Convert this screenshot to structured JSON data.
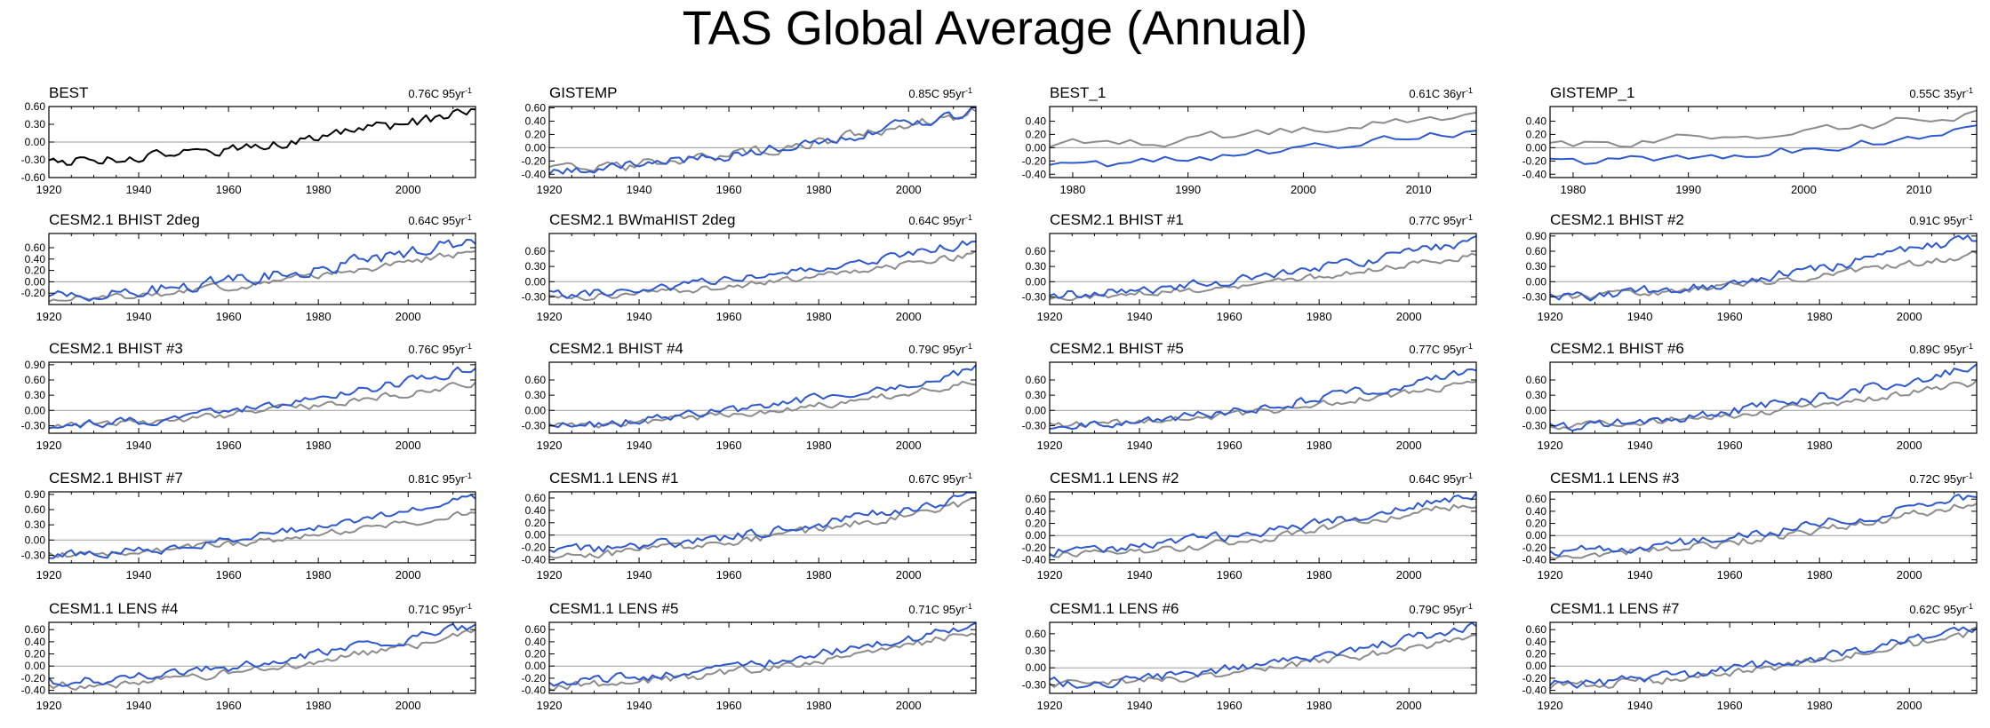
{
  "figure": {
    "title": "TAS Global Average (Annual)",
    "colors": {
      "observed": "#8c8c8c",
      "model": "#2d58d0",
      "obs_only": "#000000",
      "zero_line": "#9a9a9a"
    }
  },
  "chart_data": [
    {
      "type": "line",
      "title": "BEST",
      "trend": "0.76C 95yr",
      "trend_exp": "-1",
      "xlim": [
        1920,
        2015
      ],
      "xticks": [
        1920,
        1940,
        1960,
        1980,
        2000
      ],
      "ylim": [
        -0.6,
        0.6
      ],
      "yticks": [
        "-0.60",
        "-0.30",
        "0.00",
        "0.30",
        "0.60"
      ],
      "series": [
        {
          "name": "BEST",
          "role": "obs_only",
          "seed": 1,
          "trend": [
            -0.32,
            0.52
          ],
          "noise": 0.08
        }
      ]
    },
    {
      "type": "line",
      "title": "GISTEMP",
      "trend": "0.85C 95yr",
      "trend_exp": "-1",
      "xlim": [
        1920,
        2015
      ],
      "xticks": [
        1920,
        1940,
        1960,
        1980,
        2000
      ],
      "ylim": [
        -0.45,
        0.62
      ],
      "yticks": [
        "-0.40",
        "-0.20",
        "0.00",
        "0.20",
        "0.40",
        "0.60"
      ],
      "series": [
        {
          "name": "observed",
          "role": "observed",
          "seed": 2,
          "trend": [
            -0.33,
            0.55
          ],
          "noise": 0.07
        },
        {
          "name": "model",
          "role": "model",
          "seed": 3,
          "trend": [
            -0.33,
            0.57
          ],
          "noise": 0.07
        }
      ]
    },
    {
      "type": "line",
      "title": "BEST_1",
      "trend": "0.61C 36yr",
      "trend_exp": "-1",
      "xlim": [
        1978,
        2015
      ],
      "xticks": [
        1980,
        1990,
        2000,
        2010
      ],
      "ylim": [
        -0.45,
        0.62
      ],
      "yticks": [
        "-0.40",
        "-0.20",
        "0.00",
        "0.20",
        "0.40"
      ],
      "series": [
        {
          "name": "observed",
          "role": "observed",
          "seed": 4,
          "trend": [
            0.05,
            0.55
          ],
          "noise": 0.07
        },
        {
          "name": "model",
          "role": "model",
          "seed": 5,
          "trend": [
            -0.25,
            0.25
          ],
          "noise": 0.07
        }
      ]
    },
    {
      "type": "line",
      "title": "GISTEMP_1",
      "trend": "0.55C 35yr",
      "trend_exp": "-1",
      "xlim": [
        1978,
        2015
      ],
      "xticks": [
        1980,
        1990,
        2000,
        2010
      ],
      "ylim": [
        -0.45,
        0.62
      ],
      "yticks": [
        "-0.40",
        "-0.20",
        "0.00",
        "0.20",
        "0.40"
      ],
      "series": [
        {
          "name": "observed",
          "role": "observed",
          "seed": 6,
          "trend": [
            0.05,
            0.52
          ],
          "noise": 0.07
        },
        {
          "name": "model",
          "role": "model",
          "seed": 7,
          "trend": [
            -0.22,
            0.25
          ],
          "noise": 0.07
        }
      ]
    },
    {
      "type": "line",
      "title": "CESM2.1 BHIST 2deg",
      "trend": "0.64C 95yr",
      "trend_exp": "-1",
      "xlim": [
        1920,
        2015
      ],
      "xticks": [
        1920,
        1940,
        1960,
        1980,
        2000
      ],
      "ylim": [
        -0.4,
        0.85
      ],
      "yticks": [
        "-0.20",
        "0.00",
        "0.20",
        "0.40",
        "0.60"
      ],
      "series": [
        {
          "name": "observed",
          "role": "observed",
          "seed": 8,
          "trend": [
            -0.3,
            0.55
          ],
          "noise": 0.06
        },
        {
          "name": "model",
          "role": "model",
          "seed": 9,
          "trend": [
            -0.25,
            0.75
          ],
          "noise": 0.1
        }
      ]
    },
    {
      "type": "line",
      "title": "CESM2.1 BWmaHIST 2deg",
      "trend": "0.64C 95yr",
      "trend_exp": "-1",
      "xlim": [
        1920,
        2015
      ],
      "xticks": [
        1920,
        1940,
        1960,
        1980,
        2000
      ],
      "ylim": [
        -0.45,
        0.95
      ],
      "yticks": [
        "-0.30",
        "0.00",
        "0.30",
        "0.60"
      ],
      "series": [
        {
          "name": "observed",
          "role": "observed",
          "seed": 10,
          "trend": [
            -0.3,
            0.55
          ],
          "noise": 0.06
        },
        {
          "name": "model",
          "role": "model",
          "seed": 11,
          "trend": [
            -0.25,
            0.8
          ],
          "noise": 0.08
        }
      ]
    },
    {
      "type": "line",
      "title": "CESM2.1 BHIST #1",
      "trend": "0.77C 95yr",
      "trend_exp": "-1",
      "xlim": [
        1920,
        2015
      ],
      "xticks": [
        1920,
        1940,
        1960,
        1980,
        2000
      ],
      "ylim": [
        -0.45,
        0.95
      ],
      "yticks": [
        "-0.30",
        "0.00",
        "0.30",
        "0.60"
      ],
      "series": [
        {
          "name": "observed",
          "role": "observed",
          "seed": 12,
          "trend": [
            -0.3,
            0.55
          ],
          "noise": 0.06
        },
        {
          "name": "model",
          "role": "model",
          "seed": 13,
          "trend": [
            -0.25,
            0.82
          ],
          "noise": 0.08
        }
      ]
    },
    {
      "type": "line",
      "title": "CESM2.1 BHIST #2",
      "trend": "0.91C 95yr",
      "trend_exp": "-1",
      "xlim": [
        1920,
        2015
      ],
      "xticks": [
        1920,
        1940,
        1960,
        1980,
        2000
      ],
      "ylim": [
        -0.45,
        0.95
      ],
      "yticks": [
        "-0.30",
        "0.00",
        "0.30",
        "0.60",
        "0.90"
      ],
      "series": [
        {
          "name": "observed",
          "role": "observed",
          "seed": 14,
          "trend": [
            -0.3,
            0.55
          ],
          "noise": 0.06
        },
        {
          "name": "model",
          "role": "model",
          "seed": 15,
          "trend": [
            -0.3,
            0.88
          ],
          "noise": 0.09
        }
      ]
    },
    {
      "type": "line",
      "title": "CESM2.1 BHIST #3",
      "trend": "0.76C 95yr",
      "trend_exp": "-1",
      "xlim": [
        1920,
        2015
      ],
      "xticks": [
        1920,
        1940,
        1960,
        1980,
        2000
      ],
      "ylim": [
        -0.45,
        0.95
      ],
      "yticks": [
        "-0.30",
        "0.00",
        "0.30",
        "0.60",
        "0.90"
      ],
      "series": [
        {
          "name": "observed",
          "role": "observed",
          "seed": 16,
          "trend": [
            -0.3,
            0.55
          ],
          "noise": 0.06
        },
        {
          "name": "model",
          "role": "model",
          "seed": 17,
          "trend": [
            -0.3,
            0.85
          ],
          "noise": 0.08
        }
      ]
    },
    {
      "type": "line",
      "title": "CESM2.1 BHIST #4",
      "trend": "0.79C 95yr",
      "trend_exp": "-1",
      "xlim": [
        1920,
        2015
      ],
      "xticks": [
        1920,
        1940,
        1960,
        1980,
        2000
      ],
      "ylim": [
        -0.45,
        0.95
      ],
      "yticks": [
        "-0.30",
        "0.00",
        "0.30",
        "0.60"
      ],
      "series": [
        {
          "name": "observed",
          "role": "observed",
          "seed": 18,
          "trend": [
            -0.3,
            0.55
          ],
          "noise": 0.06
        },
        {
          "name": "model",
          "role": "model",
          "seed": 19,
          "trend": [
            -0.3,
            0.82
          ],
          "noise": 0.08
        }
      ]
    },
    {
      "type": "line",
      "title": "CESM2.1 BHIST #5",
      "trend": "0.77C 95yr",
      "trend_exp": "-1",
      "xlim": [
        1920,
        2015
      ],
      "xticks": [
        1920,
        1940,
        1960,
        1980,
        2000
      ],
      "ylim": [
        -0.45,
        0.95
      ],
      "yticks": [
        "-0.30",
        "0.00",
        "0.30",
        "0.60"
      ],
      "series": [
        {
          "name": "observed",
          "role": "observed",
          "seed": 20,
          "trend": [
            -0.3,
            0.55
          ],
          "noise": 0.06
        },
        {
          "name": "model",
          "role": "model",
          "seed": 21,
          "trend": [
            -0.3,
            0.8
          ],
          "noise": 0.08
        }
      ]
    },
    {
      "type": "line",
      "title": "CESM2.1 BHIST #6",
      "trend": "0.89C 95yr",
      "trend_exp": "-1",
      "xlim": [
        1920,
        2015
      ],
      "xticks": [
        1920,
        1940,
        1960,
        1980,
        2000
      ],
      "ylim": [
        -0.45,
        0.95
      ],
      "yticks": [
        "-0.30",
        "0.00",
        "0.30",
        "0.60"
      ],
      "series": [
        {
          "name": "observed",
          "role": "observed",
          "seed": 22,
          "trend": [
            -0.3,
            0.55
          ],
          "noise": 0.06
        },
        {
          "name": "model",
          "role": "model",
          "seed": 23,
          "trend": [
            -0.3,
            0.88
          ],
          "noise": 0.09
        }
      ]
    },
    {
      "type": "line",
      "title": "CESM2.1 BHIST #7",
      "trend": "0.81C 95yr",
      "trend_exp": "-1",
      "xlim": [
        1920,
        2015
      ],
      "xticks": [
        1920,
        1940,
        1960,
        1980,
        2000
      ],
      "ylim": [
        -0.45,
        0.95
      ],
      "yticks": [
        "-0.30",
        "0.00",
        "0.30",
        "0.60",
        "0.90"
      ],
      "series": [
        {
          "name": "observed",
          "role": "observed",
          "seed": 24,
          "trend": [
            -0.3,
            0.55
          ],
          "noise": 0.06
        },
        {
          "name": "model",
          "role": "model",
          "seed": 25,
          "trend": [
            -0.3,
            0.85
          ],
          "noise": 0.08
        }
      ]
    },
    {
      "type": "line",
      "title": "CESM1.1 LENS #1",
      "trend": "0.67C 95yr",
      "trend_exp": "-1",
      "xlim": [
        1920,
        2015
      ],
      "xticks": [
        1920,
        1940,
        1960,
        1980,
        2000
      ],
      "ylim": [
        -0.45,
        0.7
      ],
      "yticks": [
        "-0.40",
        "-0.20",
        "0.00",
        "0.20",
        "0.40",
        "0.60"
      ],
      "series": [
        {
          "name": "observed",
          "role": "observed",
          "seed": 26,
          "trend": [
            -0.33,
            0.55
          ],
          "noise": 0.06
        },
        {
          "name": "model",
          "role": "model",
          "seed": 27,
          "trend": [
            -0.25,
            0.65
          ],
          "noise": 0.07
        }
      ]
    },
    {
      "type": "line",
      "title": "CESM1.1 LENS #2",
      "trend": "0.64C 95yr",
      "trend_exp": "-1",
      "xlim": [
        1920,
        2015
      ],
      "xticks": [
        1920,
        1940,
        1960,
        1980,
        2000
      ],
      "ylim": [
        -0.45,
        0.72
      ],
      "yticks": [
        "-0.40",
        "-0.20",
        "0.00",
        "0.20",
        "0.40",
        "0.60"
      ],
      "series": [
        {
          "name": "observed",
          "role": "observed",
          "seed": 28,
          "trend": [
            -0.33,
            0.55
          ],
          "noise": 0.06
        },
        {
          "name": "model",
          "role": "model",
          "seed": 29,
          "trend": [
            -0.25,
            0.68
          ],
          "noise": 0.07
        }
      ]
    },
    {
      "type": "line",
      "title": "CESM1.1 LENS #3",
      "trend": "0.72C 95yr",
      "trend_exp": "-1",
      "xlim": [
        1920,
        2015
      ],
      "xticks": [
        1920,
        1940,
        1960,
        1980,
        2000
      ],
      "ylim": [
        -0.45,
        0.72
      ],
      "yticks": [
        "-0.40",
        "-0.20",
        "0.00",
        "0.20",
        "0.40",
        "0.60"
      ],
      "series": [
        {
          "name": "observed",
          "role": "observed",
          "seed": 30,
          "trend": [
            -0.33,
            0.55
          ],
          "noise": 0.06
        },
        {
          "name": "model",
          "role": "model",
          "seed": 31,
          "trend": [
            -0.25,
            0.68
          ],
          "noise": 0.07
        }
      ]
    },
    {
      "type": "line",
      "title": "CESM1.1 LENS #4",
      "trend": "0.71C 95yr",
      "trend_exp": "-1",
      "xlim": [
        1920,
        2015
      ],
      "xticks": [
        1920,
        1940,
        1960,
        1980,
        2000
      ],
      "ylim": [
        -0.45,
        0.72
      ],
      "yticks": [
        "-0.40",
        "-0.20",
        "0.00",
        "0.20",
        "0.40",
        "0.60"
      ],
      "series": [
        {
          "name": "observed",
          "role": "observed",
          "seed": 32,
          "trend": [
            -0.33,
            0.55
          ],
          "noise": 0.06
        },
        {
          "name": "model",
          "role": "model",
          "seed": 33,
          "trend": [
            -0.25,
            0.68
          ],
          "noise": 0.07
        }
      ]
    },
    {
      "type": "line",
      "title": "CESM1.1 LENS #5",
      "trend": "0.71C 95yr",
      "trend_exp": "-1",
      "xlim": [
        1920,
        2015
      ],
      "xticks": [
        1920,
        1940,
        1960,
        1980,
        2000
      ],
      "ylim": [
        -0.45,
        0.72
      ],
      "yticks": [
        "-0.40",
        "-0.20",
        "0.00",
        "0.20",
        "0.40",
        "0.60"
      ],
      "series": [
        {
          "name": "observed",
          "role": "observed",
          "seed": 34,
          "trend": [
            -0.33,
            0.55
          ],
          "noise": 0.06
        },
        {
          "name": "model",
          "role": "model",
          "seed": 35,
          "trend": [
            -0.25,
            0.68
          ],
          "noise": 0.07
        }
      ]
    },
    {
      "type": "line",
      "title": "CESM1.1 LENS #6",
      "trend": "0.79C 95yr",
      "trend_exp": "-1",
      "xlim": [
        1920,
        2015
      ],
      "xticks": [
        1920,
        1940,
        1960,
        1980,
        2000
      ],
      "ylim": [
        -0.45,
        0.8
      ],
      "yticks": [
        "-0.30",
        "0.00",
        "0.30",
        "0.60"
      ],
      "series": [
        {
          "name": "observed",
          "role": "observed",
          "seed": 36,
          "trend": [
            -0.3,
            0.55
          ],
          "noise": 0.06
        },
        {
          "name": "model",
          "role": "model",
          "seed": 37,
          "trend": [
            -0.28,
            0.75
          ],
          "noise": 0.08
        }
      ]
    },
    {
      "type": "line",
      "title": "CESM1.1 LENS #7",
      "trend": "0.62C 95yr",
      "trend_exp": "-1",
      "xlim": [
        1920,
        2015
      ],
      "xticks": [
        1920,
        1940,
        1960,
        1980,
        2000
      ],
      "ylim": [
        -0.45,
        0.72
      ],
      "yticks": [
        "-0.40",
        "-0.20",
        "0.00",
        "0.20",
        "0.40",
        "0.60"
      ],
      "series": [
        {
          "name": "observed",
          "role": "observed",
          "seed": 38,
          "trend": [
            -0.33,
            0.55
          ],
          "noise": 0.06
        },
        {
          "name": "model",
          "role": "model",
          "seed": 39,
          "trend": [
            -0.3,
            0.65
          ],
          "noise": 0.07
        }
      ]
    }
  ]
}
